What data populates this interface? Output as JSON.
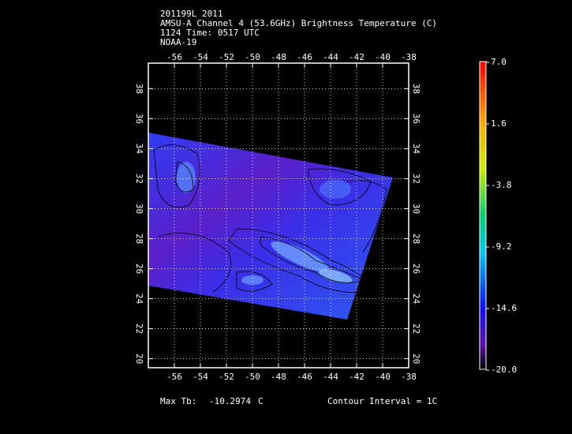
{
  "header": {
    "lines": [
      "201199L 2011",
      "AMSU-A Channel 4 (53.6GHz) Brightness Temperature (C)",
      "1124 Time: 0517 UTC",
      "NOAA-19"
    ]
  },
  "map": {
    "xlim": [
      -58,
      -38
    ],
    "ylim": [
      19.4,
      39.7
    ],
    "xticks": [
      -56,
      -54,
      -52,
      -50,
      -48,
      -46,
      -44,
      -42,
      -40,
      -38
    ],
    "yticks": [
      20,
      22,
      24,
      26,
      28,
      30,
      32,
      34,
      36,
      38
    ]
  },
  "colorbar": {
    "labels": [
      "7.0",
      "1.6",
      "-3.8",
      "-9.2",
      "-14.6",
      "-20.0"
    ]
  },
  "footer": {
    "max_label": "Max Tb:",
    "max_value": -10.2974,
    "max_unit": "C",
    "contour": "Contour Interval = 1C"
  }
}
